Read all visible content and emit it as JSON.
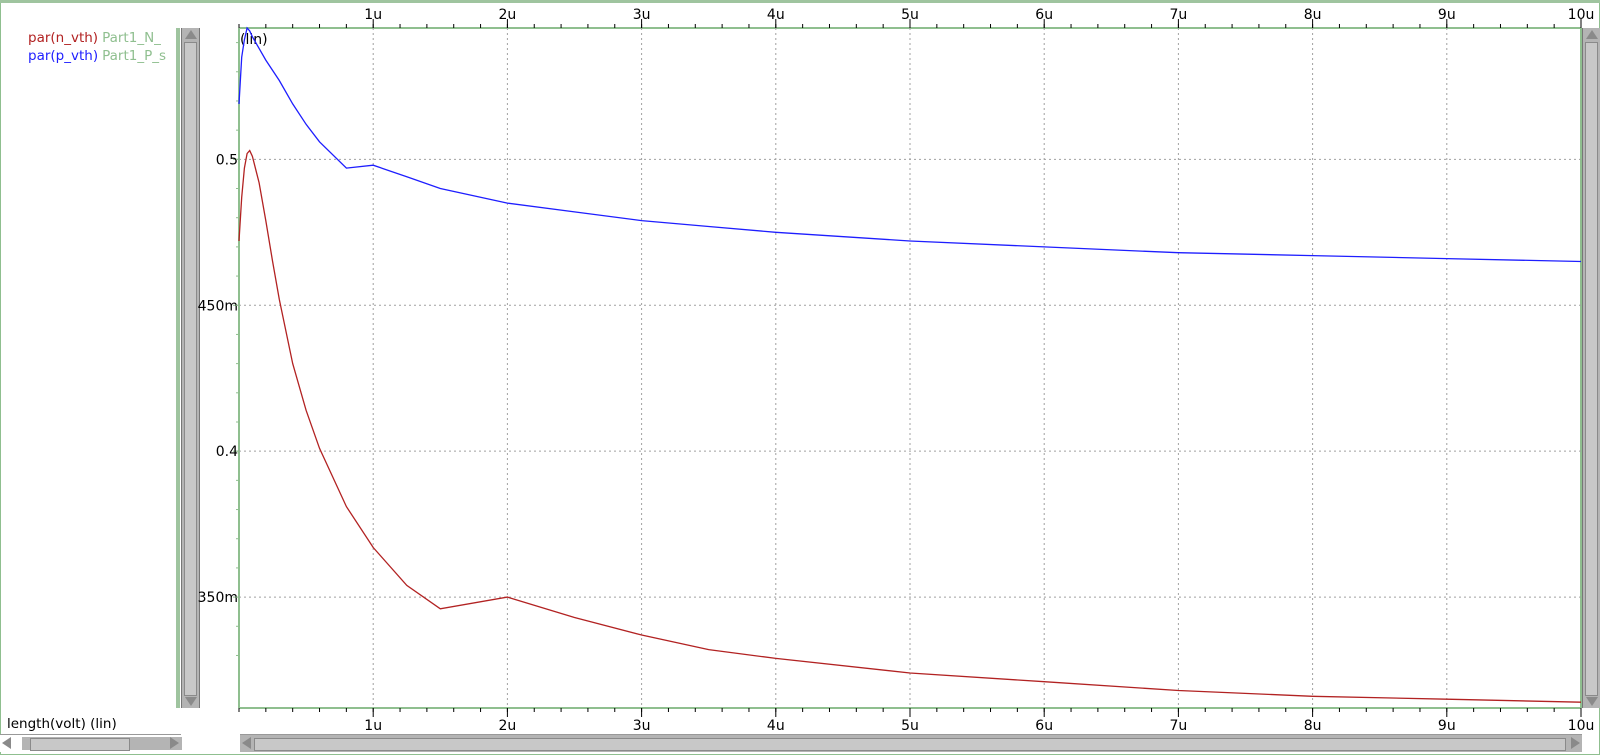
{
  "legend": {
    "items": [
      {
        "signal": "par(n_vth)",
        "part": "Part1_N_",
        "color": "#b22222"
      },
      {
        "signal": "par(p_vth)",
        "part": "Part1_P_s",
        "color": "#1e1eff"
      }
    ]
  },
  "x_axis_label": "length(volt) (lin)",
  "y_axis_scale": "(lin)",
  "colors": {
    "frame": "#8fbf8f",
    "grid": "#a0a0a0",
    "axis_text": "#000000"
  },
  "chart_data": {
    "type": "line",
    "xlim": [
      0.0,
      10.0
    ],
    "ylim": [
      0.312,
      0.545
    ],
    "x_ticks": [
      {
        "value": 1,
        "label": "1u"
      },
      {
        "value": 2,
        "label": "2u"
      },
      {
        "value": 3,
        "label": "3u"
      },
      {
        "value": 4,
        "label": "4u"
      },
      {
        "value": 5,
        "label": "5u"
      },
      {
        "value": 6,
        "label": "6u"
      },
      {
        "value": 7,
        "label": "7u"
      },
      {
        "value": 8,
        "label": "8u"
      },
      {
        "value": 9,
        "label": "9u"
      },
      {
        "value": 10,
        "label": "10u"
      }
    ],
    "y_ticks": [
      {
        "value": 0.35,
        "label": "350m"
      },
      {
        "value": 0.4,
        "label": "0.4"
      },
      {
        "value": 0.45,
        "label": "450m"
      },
      {
        "value": 0.5,
        "label": "0.5"
      }
    ],
    "grid": true,
    "legend_position": "left",
    "series": [
      {
        "name": "par(n_vth)",
        "color": "#b22222",
        "x": [
          0.0,
          0.02,
          0.04,
          0.06,
          0.08,
          0.1,
          0.15,
          0.2,
          0.25,
          0.3,
          0.4,
          0.5,
          0.6,
          0.8,
          1.0,
          1.25,
          1.5,
          2.0,
          2.5,
          3.0,
          3.5,
          4.0,
          5.0,
          6.0,
          7.0,
          8.0,
          9.0,
          10.0
        ],
        "y": [
          0.472,
          0.487,
          0.497,
          0.502,
          0.503,
          0.501,
          0.492,
          0.479,
          0.465,
          0.452,
          0.43,
          0.414,
          0.401,
          0.381,
          0.367,
          0.354,
          0.346,
          0.35,
          0.343,
          0.337,
          0.332,
          0.329,
          0.324,
          0.321,
          0.318,
          0.316,
          0.315,
          0.314
        ]
      },
      {
        "name": "par(p_vth)",
        "color": "#1e1eff",
        "x": [
          0.0,
          0.02,
          0.04,
          0.06,
          0.08,
          0.1,
          0.15,
          0.2,
          0.3,
          0.4,
          0.5,
          0.6,
          0.8,
          1.0,
          1.25,
          1.5,
          2.0,
          2.5,
          3.0,
          3.5,
          4.0,
          5.0,
          6.0,
          7.0,
          8.0,
          9.0,
          10.0
        ],
        "y": [
          0.519,
          0.535,
          0.541,
          0.545,
          0.544,
          0.542,
          0.538,
          0.534,
          0.527,
          0.519,
          0.512,
          0.506,
          0.497,
          0.498,
          0.494,
          0.49,
          0.485,
          0.482,
          0.479,
          0.477,
          0.475,
          0.472,
          0.47,
          0.468,
          0.467,
          0.466,
          0.465
        ]
      }
    ]
  }
}
